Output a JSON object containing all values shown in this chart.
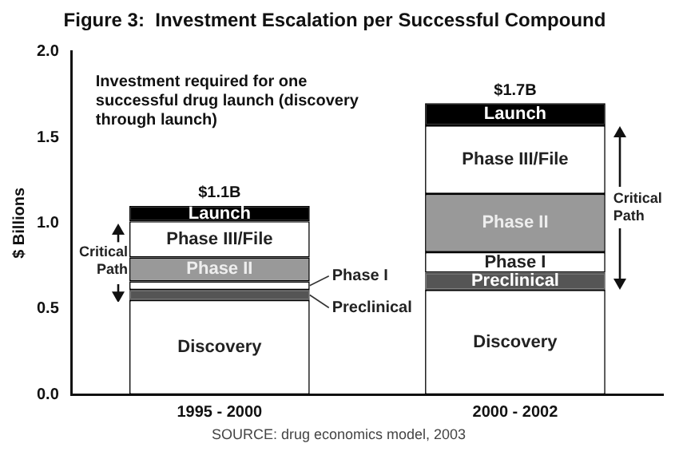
{
  "chart_data": {
    "type": "bar",
    "stacked": true,
    "title": "Figure 3:  Investment Escalation per Successful Compound",
    "ylabel": "$ Billions",
    "categories": [
      "1995 - 2000",
      "2000 - 2002"
    ],
    "series": [
      {
        "name": "Discovery",
        "color": "#ffffff",
        "values": [
          0.55,
          0.61
        ]
      },
      {
        "name": "Preclinical",
        "color": "#555555",
        "values": [
          0.06,
          0.1
        ]
      },
      {
        "name": "Phase I",
        "color": "#ffffff",
        "values": [
          0.05,
          0.12
        ]
      },
      {
        "name": "Phase II",
        "color": "#999999",
        "values": [
          0.14,
          0.34
        ]
      },
      {
        "name": "Phase III/File",
        "color": "#ffffff",
        "values": [
          0.21,
          0.4
        ]
      },
      {
        "name": "Launch",
        "color": "#000000",
        "values": [
          0.09,
          0.13
        ]
      }
    ],
    "totals": [
      "$1.1B",
      "$1.7B"
    ],
    "ylim": [
      0,
      2
    ],
    "yticks": [
      {
        "value": 0,
        "label": "0.0"
      },
      {
        "value": 0.5,
        "label": "0.5"
      },
      {
        "value": 1,
        "label": "1.0"
      },
      {
        "value": 1.5,
        "label": "1.5"
      },
      {
        "value": 2,
        "label": "2.0"
      }
    ],
    "grid": false,
    "legend": false,
    "annotations": [
      "Investment required for one successful drug launch (discovery through launch)",
      "Critical Path",
      "Critical Path",
      "SOURCE: drug economics model, 2003"
    ]
  }
}
